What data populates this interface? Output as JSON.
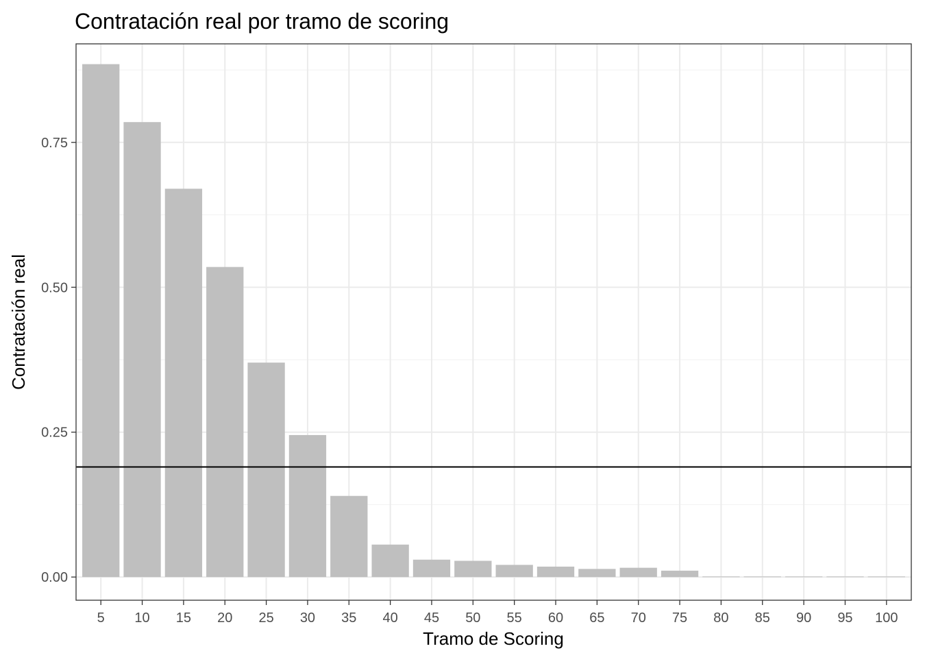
{
  "chart_data": {
    "type": "bar",
    "title": "Contratación real por tramo de scoring",
    "xlabel": "Tramo de Scoring",
    "ylabel": "Contratación real",
    "categories": [
      "5",
      "10",
      "15",
      "20",
      "25",
      "30",
      "35",
      "40",
      "45",
      "50",
      "55",
      "60",
      "65",
      "70",
      "75",
      "80",
      "85",
      "90",
      "95",
      "100"
    ],
    "values": [
      0.885,
      0.785,
      0.67,
      0.535,
      0.37,
      0.245,
      0.14,
      0.056,
      0.03,
      0.028,
      0.021,
      0.018,
      0.014,
      0.016,
      0.011,
      0.001,
      0.001,
      0.001,
      0.001,
      0.001
    ],
    "yticks": [
      "0.00",
      "0.25",
      "0.50",
      "0.75"
    ],
    "ylim": [
      -0.04,
      0.92
    ],
    "reference_line": 0.19,
    "bar_color": "#bfbfbf",
    "line_color": "#000000",
    "grid": true
  }
}
